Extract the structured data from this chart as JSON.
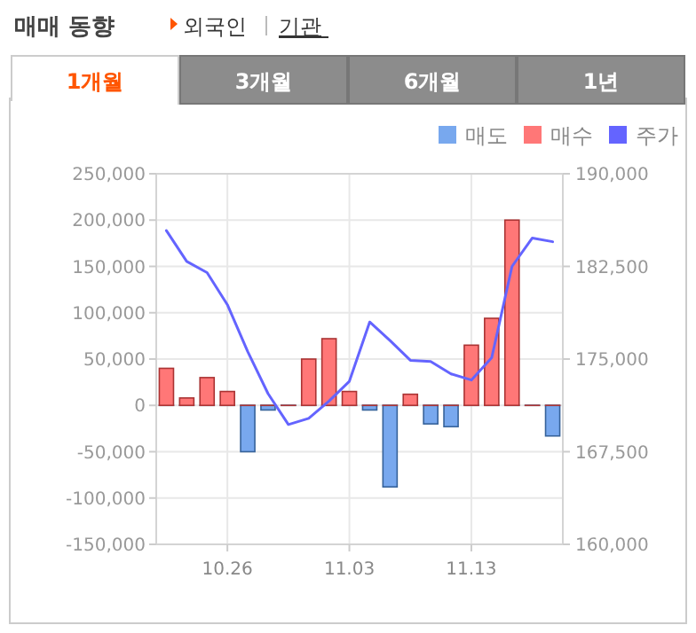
{
  "chart_data": {
    "type": "bar",
    "title": "매매 동향",
    "annotations": [
      "외국인",
      "기관",
      "1개월",
      "3개월",
      "6개월",
      "1년"
    ],
    "categories": [
      null,
      null,
      null,
      "10.26",
      null,
      null,
      null,
      null,
      null,
      "11.03",
      null,
      null,
      null,
      null,
      null,
      "11.13",
      null,
      null,
      null,
      null
    ],
    "stacked": true,
    "series": [
      {
        "name": "매도",
        "color": "#78a8ee",
        "values": [
          0,
          0,
          0,
          0,
          -50000,
          -5000,
          0,
          0,
          0,
          0,
          -5000,
          -88000,
          0,
          -20000,
          -23000,
          0,
          0,
          0,
          0,
          -33000
        ]
      },
      {
        "name": "매수",
        "color": "#ff7777",
        "values": [
          40000,
          8000,
          30000,
          15000,
          0,
          0,
          0,
          50000,
          72000,
          15000,
          0,
          0,
          12000,
          0,
          0,
          65000,
          94000,
          200000,
          0,
          0
        ]
      },
      {
        "name": "주가",
        "type": "line",
        "axis": "y2",
        "color": "#6464ff",
        "values": [
          185400,
          182900,
          182000,
          179400,
          175600,
          172200,
          169700,
          170200,
          171600,
          173200,
          178000,
          176500,
          174900,
          174800,
          173800,
          173300,
          175100,
          182500,
          184800,
          184500
        ]
      }
    ],
    "ylim": [
      -150000,
      250000
    ],
    "yticks": [
      {
        "value": -150000,
        "label": "-150,000"
      },
      {
        "value": -100000,
        "label": "-100,000"
      },
      {
        "value": -50000,
        "label": "-50,000"
      },
      0,
      {
        "value": 50000,
        "label": "50,000"
      },
      {
        "value": 100000,
        "label": "100,000"
      },
      {
        "value": 150000,
        "label": "150,000"
      },
      {
        "value": 200000,
        "label": "200,000"
      },
      {
        "value": 250000,
        "label": "250,000"
      }
    ],
    "y2lim": [
      160000,
      190000
    ],
    "y2ticks": [
      {
        "value": 160000,
        "label": "160,000"
      },
      {
        "value": 167500,
        "label": "167,500"
      },
      {
        "value": 175000,
        "label": "175,000"
      },
      {
        "value": 182500,
        "label": "182,500"
      },
      {
        "value": 190000,
        "label": "190,000"
      }
    ],
    "grid": true,
    "legend": "top right"
  }
}
